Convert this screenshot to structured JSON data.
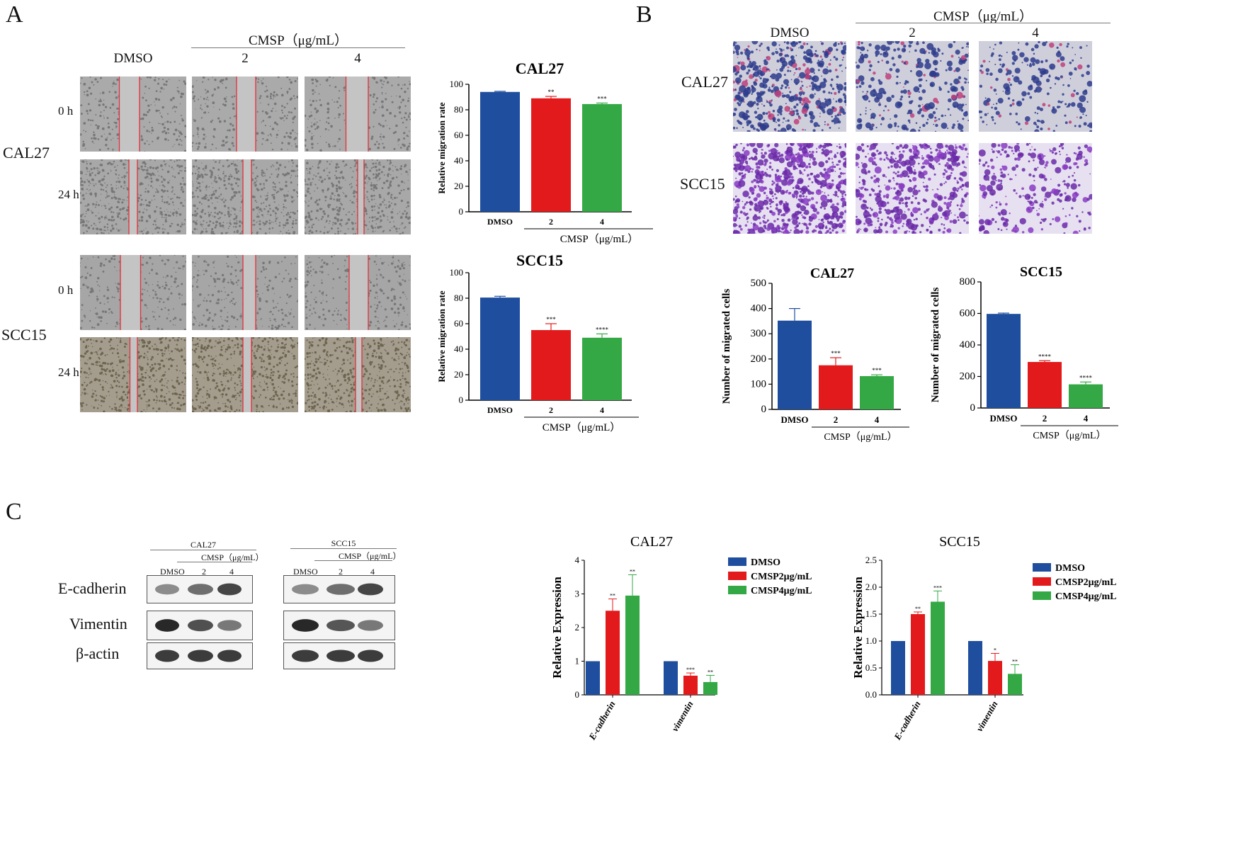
{
  "panels": {
    "A": {
      "letter": "A",
      "treat_group": "CMSP（μg/mL）",
      "columns": [
        "DMSO",
        "2",
        "4"
      ],
      "cell_lines": [
        "CAL27",
        "SCC15"
      ],
      "times": [
        "0 h",
        "24 h"
      ]
    },
    "B": {
      "letter": "B",
      "treat_group": "CMSP（μg/mL）",
      "columns": [
        "DMSO",
        "2",
        "4"
      ],
      "cell_lines": [
        "CAL27",
        "SCC15"
      ]
    },
    "C": {
      "letter": "C",
      "blots": [
        {
          "title": "CAL27",
          "treat": "CMSP（μg/mL）",
          "lanes": [
            "DMSO",
            "2",
            "4"
          ]
        },
        {
          "title": "SCC15",
          "treat": "CMSP（μg/mL）",
          "lanes": [
            "DMSO",
            "2",
            "4"
          ]
        }
      ],
      "proteins": [
        "E-cadherin",
        "Vimentin",
        "β-actin"
      ]
    }
  },
  "colors": {
    "dmso": "#1f4e9e",
    "c2": "#e31a1c",
    "c4": "#33a844"
  },
  "chart_data": [
    {
      "id": "a1",
      "type": "bar",
      "title": "CAL27",
      "ylabel": "Relative migration rate",
      "categories": [
        "DMSO",
        "2",
        "4"
      ],
      "group_label": "CMSP（μg/mL）",
      "values": [
        94,
        89,
        84.5
      ],
      "errors": [
        0.5,
        1.5,
        0.8
      ],
      "sig": [
        "",
        "**",
        "***"
      ],
      "ylim": [
        0,
        100
      ],
      "yticks": [
        0,
        20,
        40,
        60,
        80,
        100
      ]
    },
    {
      "id": "a2",
      "type": "bar",
      "title": "SCC15",
      "ylabel": "Relative migration rate",
      "categories": [
        "DMSO",
        "2",
        "4"
      ],
      "group_label": "CMSP（μg/mL）",
      "values": [
        80.5,
        55,
        49
      ],
      "errors": [
        1,
        5,
        3
      ],
      "sig": [
        "",
        "***",
        "****"
      ],
      "ylim": [
        0,
        100
      ],
      "yticks": [
        0,
        20,
        40,
        60,
        80,
        100
      ]
    },
    {
      "id": "b1",
      "type": "bar",
      "title": "CAL27",
      "ylabel": "Number of migrated cells",
      "categories": [
        "DMSO",
        "2",
        "4"
      ],
      "group_label": "CMSP（μg/mL）",
      "values": [
        352,
        175,
        132
      ],
      "errors": [
        48,
        30,
        5
      ],
      "sig": [
        "",
        "***",
        "***"
      ],
      "ylim": [
        0,
        500
      ],
      "yticks": [
        0,
        100,
        200,
        300,
        400,
        500
      ]
    },
    {
      "id": "b2",
      "type": "bar",
      "title": "SCC15",
      "ylabel": "Number of migrated cells",
      "categories": [
        "DMSO",
        "2",
        "4"
      ],
      "group_label": "CMSP（μg/mL）",
      "values": [
        597,
        292,
        150
      ],
      "errors": [
        5,
        8,
        15
      ],
      "sig": [
        "",
        "****",
        "****"
      ],
      "ylim": [
        0,
        800
      ],
      "yticks": [
        0,
        200,
        400,
        600,
        800
      ]
    },
    {
      "id": "c1",
      "type": "grouped-bar",
      "title": "CAL27",
      "ylabel": "Relative Expression",
      "categories": [
        "E-cadherin",
        "vimentin"
      ],
      "series": [
        {
          "name": "DMSO",
          "values": [
            1,
            1
          ],
          "errors": [
            0,
            0
          ],
          "sig": [
            "",
            ""
          ]
        },
        {
          "name": "CMSP2μg/mL",
          "values": [
            2.5,
            0.57
          ],
          "errors": [
            0.35,
            0.08
          ],
          "sig": [
            "**",
            "***"
          ]
        },
        {
          "name": "CMSP4μg/mL",
          "values": [
            2.95,
            0.38
          ],
          "errors": [
            0.62,
            0.2
          ],
          "sig": [
            "**",
            "**"
          ]
        }
      ],
      "ylim": [
        0,
        4
      ],
      "yticks": [
        0,
        1,
        2,
        3,
        4
      ],
      "legend": "right"
    },
    {
      "id": "c2",
      "type": "grouped-bar",
      "title": "SCC15",
      "ylabel": "Relative Expression",
      "categories": [
        "E-cadherin",
        "vimentin"
      ],
      "series": [
        {
          "name": "DMSO",
          "values": [
            1,
            1
          ],
          "errors": [
            0,
            0
          ],
          "sig": [
            "",
            ""
          ]
        },
        {
          "name": "CMSP2μg/mL",
          "values": [
            1.5,
            0.63
          ],
          "errors": [
            0.04,
            0.14
          ],
          "sig": [
            "**",
            "*"
          ]
        },
        {
          "name": "CMSP4μg/mL",
          "values": [
            1.73,
            0.39
          ],
          "errors": [
            0.2,
            0.17
          ],
          "sig": [
            "***",
            "**"
          ]
        }
      ],
      "ylim": [
        0,
        2.5
      ],
      "yticks": [
        "0.0",
        "0.5",
        "1.0",
        "1.5",
        "2.0",
        "2.5"
      ],
      "legend": "right"
    }
  ]
}
